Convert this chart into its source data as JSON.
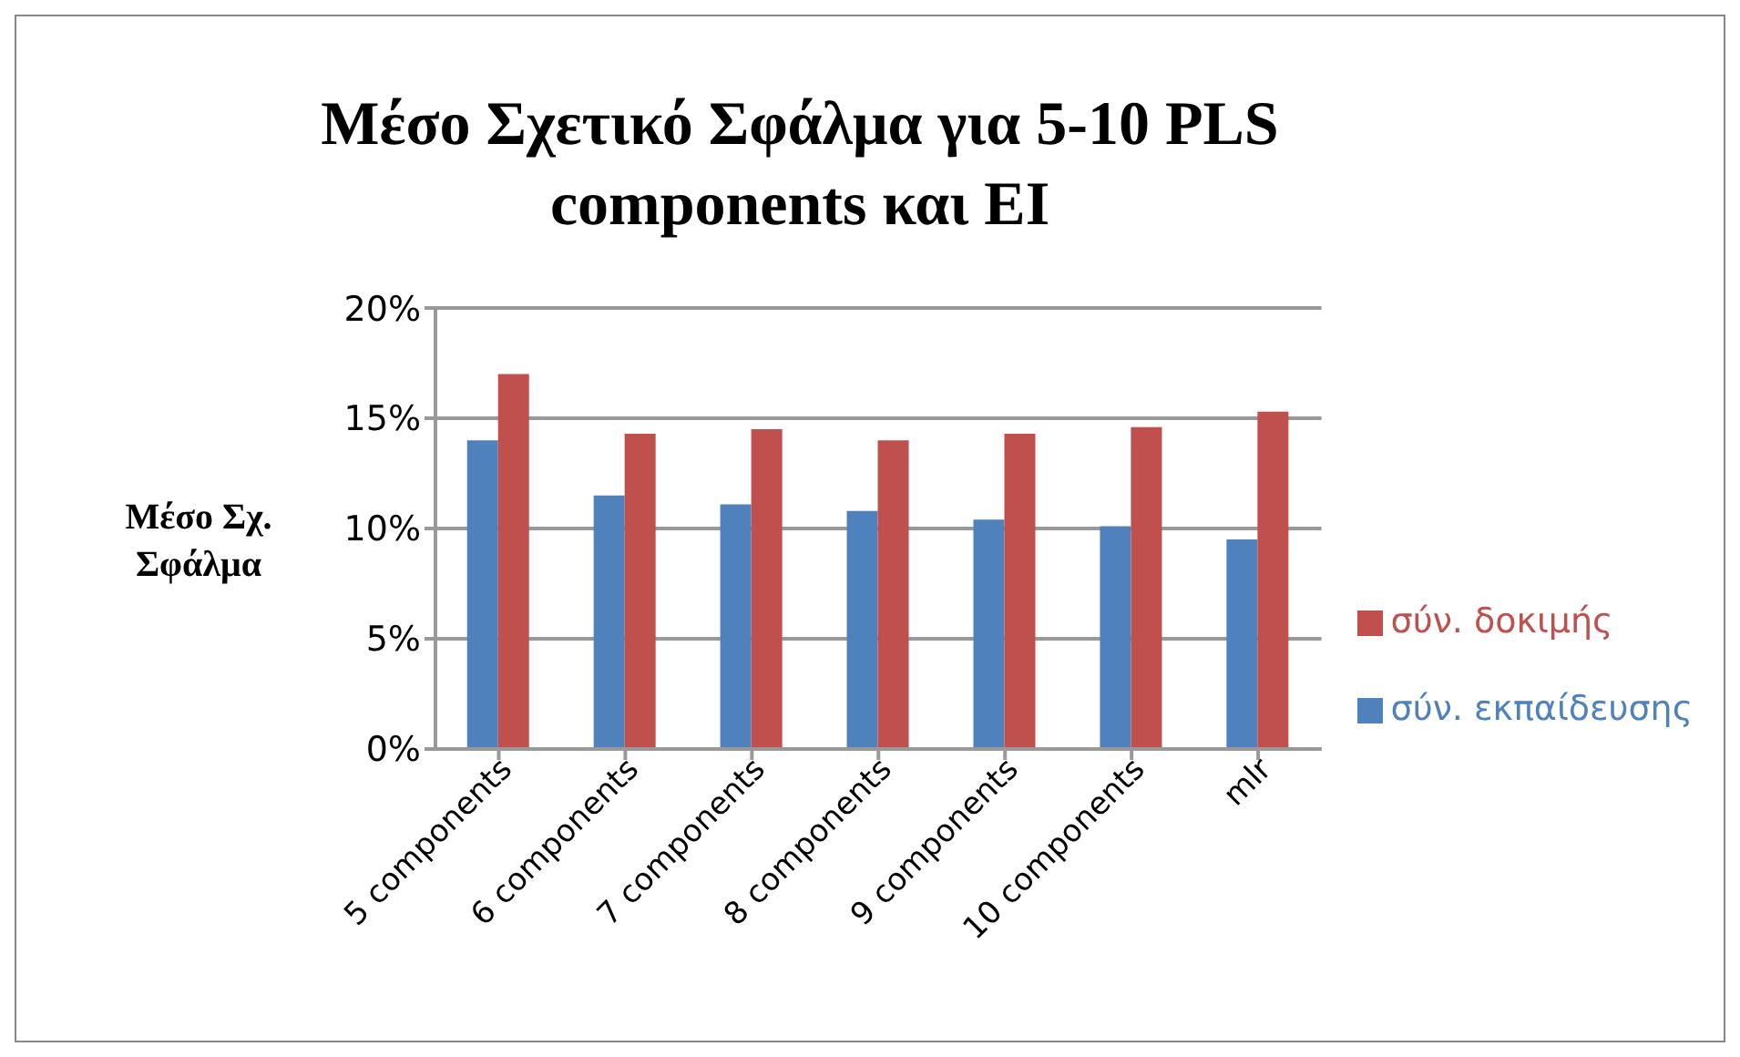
{
  "chart_data": {
    "type": "bar",
    "title": "Μέσο Σχετικό Σφάλμα για 5-10 PLS components και EI",
    "ylabel": "Μέσο Σχ. Σφάλμα",
    "categories": [
      "5 components",
      "6 components",
      "7 components",
      "8 components",
      "9 components",
      "10 components",
      "mlr"
    ],
    "series": [
      {
        "name": "σύν. εκπαίδευσης",
        "color": "#4f81bd",
        "values": [
          14,
          11.5,
          11.1,
          10.8,
          10.4,
          10.1,
          9.5
        ]
      },
      {
        "name": "σύν. δοκιμής",
        "color": "#c0504d",
        "values": [
          17,
          14.3,
          14.5,
          14,
          14.3,
          14.6,
          15.3
        ]
      }
    ],
    "ylim": [
      0,
      20
    ],
    "yticks": [
      {
        "value": 0,
        "label": "0%"
      },
      {
        "value": 5,
        "label": "5%"
      },
      {
        "value": 10,
        "label": "10%"
      },
      {
        "value": 15,
        "label": "15%"
      },
      {
        "value": 20,
        "label": "20%"
      }
    ],
    "grid": "y",
    "legend": "right"
  }
}
